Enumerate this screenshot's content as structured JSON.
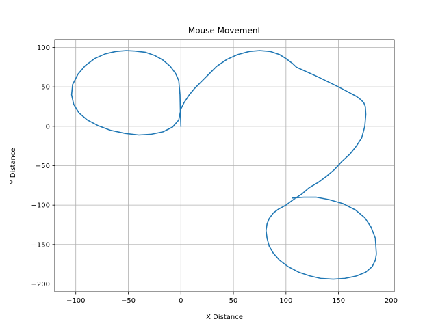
{
  "chart_data": {
    "type": "line",
    "title": "Mouse Movement",
    "xlabel": "X Distance",
    "ylabel": "Y Distance",
    "xlim": [
      -120,
      203
    ],
    "ylim": [
      -210,
      110
    ],
    "x_ticks": [
      -100,
      -50,
      0,
      50,
      100,
      150,
      200
    ],
    "y_ticks": [
      -200,
      -150,
      -100,
      -50,
      0,
      50,
      100
    ],
    "x_tick_labels": [
      "−100",
      "−50",
      "0",
      "50",
      "100",
      "150",
      "200"
    ],
    "y_tick_labels": [
      "−200",
      "−150",
      "−100",
      "−50",
      "0",
      "50",
      "100"
    ],
    "grid": true,
    "line_color": "#1f77b4",
    "series": [
      {
        "x": [
          0,
          -0.5,
          -0.8,
          -2,
          -5,
          -10,
          -17,
          -25,
          -34,
          -44,
          -52,
          -62,
          -72,
          -82,
          -91,
          -98,
          -103,
          -104,
          -102,
          -97,
          -89,
          -79,
          -67,
          -53,
          -40,
          -28,
          -17,
          -8,
          -2,
          0,
          3,
          8,
          13,
          19,
          25,
          34,
          44,
          54,
          65,
          75,
          85,
          94,
          100,
          106,
          110,
          130,
          150,
          160,
          167,
          171,
          174,
          175.5,
          176,
          175,
          172,
          167,
          161,
          153,
          146,
          139,
          131,
          122,
          115,
          107,
          100,
          93,
          88,
          84,
          82,
          81,
          82,
          84,
          88,
          94,
          102,
          112,
          123,
          133,
          145,
          156,
          167,
          176,
          182,
          185,
          186,
          185,
          181,
          175,
          166,
          154,
          141,
          129,
          117,
          106
        ],
        "y": [
          0,
          20,
          40,
          58,
          67,
          76,
          84,
          90,
          94,
          95.5,
          96,
          95,
          92,
          86,
          77,
          66,
          53,
          40,
          28,
          17,
          8,
          1,
          -5,
          -9,
          -11,
          -10,
          -7,
          -1,
          8,
          22,
          30,
          40,
          48,
          56,
          64,
          76,
          85,
          91,
          95,
          96,
          95,
          91,
          86,
          80,
          75,
          63,
          50,
          43,
          38,
          34,
          30,
          25,
          15,
          0,
          -15,
          -25,
          -35,
          -45,
          -55,
          -63,
          -71,
          -78,
          -86,
          -93,
          -100,
          -105,
          -110,
          -117,
          -124,
          -132,
          -142,
          -152,
          -161,
          -170,
          -178,
          -185,
          -190,
          -193,
          -194,
          -193,
          -190,
          -185,
          -178,
          -170,
          -162,
          -142,
          -128,
          -116,
          -106,
          -98,
          -93,
          -90,
          -90,
          -91
        ]
      }
    ]
  }
}
